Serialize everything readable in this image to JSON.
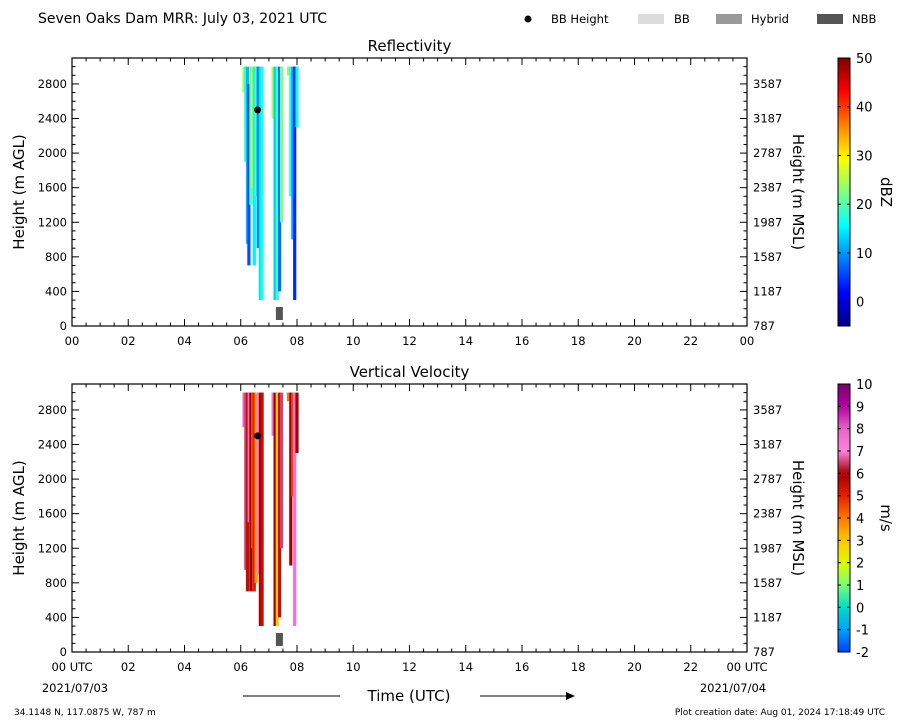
{
  "header": {
    "title": "Seven Oaks Dam MRR:  July 03, 2021 UTC",
    "legend": [
      {
        "label": "BB Height",
        "marker": "dot",
        "color": "#000000"
      },
      {
        "label": "BB",
        "marker": "box",
        "color": "#dcdcdc"
      },
      {
        "label": "Hybrid",
        "marker": "box",
        "color": "#999999"
      },
      {
        "label": "NBB",
        "marker": "box",
        "color": "#555555"
      }
    ]
  },
  "footer": {
    "location": "34.1148 N, 117.0875 W, 787 m",
    "created": "Plot creation date: Aug 01, 2024 17:18:49 UTC",
    "time_label": "Time (UTC)",
    "start_date": "2021/07/03",
    "end_date": "2021/07/04"
  },
  "chart_data": [
    {
      "type": "heatmap",
      "title": "Reflectivity",
      "ylabel": "Height (m AGL)",
      "ylabel_right": "Height (m MSL)",
      "colorbar_label": "dBZ",
      "colorbar_ticks": [
        "0",
        "10",
        "20",
        "30",
        "40",
        "50"
      ],
      "colorbar_range": [
        -5,
        50
      ],
      "colormap": "jet",
      "x_ticks": [
        "00",
        "02",
        "04",
        "06",
        "08",
        "10",
        "12",
        "14",
        "16",
        "18",
        "20",
        "22",
        "00"
      ],
      "xlim_hours": [
        0,
        24
      ],
      "y_ticks": [
        "0",
        "400",
        "800",
        "1200",
        "1600",
        "2000",
        "2400",
        "2800"
      ],
      "y_ticks_right": [
        "787",
        "1187",
        "1587",
        "1987",
        "2387",
        "2787",
        "3187",
        "3587"
      ],
      "ylim": [
        0,
        3100
      ],
      "columns": [
        {
          "t": 6.12,
          "bottom": 2700,
          "top": 3000,
          "value": 24
        },
        {
          "t": 6.18,
          "bottom": 1900,
          "top": 3000,
          "value": 18
        },
        {
          "t": 6.24,
          "bottom": 950,
          "top": 3000,
          "value": 12
        },
        {
          "t": 6.29,
          "bottom": 700,
          "top": 2800,
          "value": 6
        },
        {
          "t": 6.36,
          "bottom": 1400,
          "top": 3000,
          "value": 21
        },
        {
          "t": 6.42,
          "bottom": 1600,
          "top": 3000,
          "value": 27
        },
        {
          "t": 6.48,
          "bottom": 700,
          "top": 3000,
          "value": 15
        },
        {
          "t": 6.55,
          "bottom": 1500,
          "top": 3000,
          "value": 20
        },
        {
          "t": 6.62,
          "bottom": 900,
          "top": 3000,
          "value": 9
        },
        {
          "t": 6.7,
          "bottom": 300,
          "top": 3000,
          "value": 14
        },
        {
          "t": 6.76,
          "bottom": 300,
          "top": 3000,
          "value": 17
        },
        {
          "t": 7.15,
          "bottom": 2400,
          "top": 3000,
          "value": 25
        },
        {
          "t": 7.22,
          "bottom": 300,
          "top": 3000,
          "value": 13
        },
        {
          "t": 7.3,
          "bottom": 300,
          "top": 3000,
          "value": 19
        },
        {
          "t": 7.38,
          "bottom": 400,
          "top": 3000,
          "value": 8
        },
        {
          "t": 7.45,
          "bottom": 1200,
          "top": 3000,
          "value": 22
        },
        {
          "t": 7.7,
          "bottom": 2900,
          "top": 3000,
          "value": 23
        },
        {
          "t": 7.78,
          "bottom": 1500,
          "top": 3000,
          "value": 18
        },
        {
          "t": 7.85,
          "bottom": 1000,
          "top": 3000,
          "value": 11
        },
        {
          "t": 7.92,
          "bottom": 300,
          "top": 3000,
          "value": 4
        },
        {
          "t": 8.0,
          "bottom": 2300,
          "top": 3000,
          "value": 16
        }
      ],
      "bb_height": [
        {
          "t": 6.6,
          "h": 2500
        }
      ],
      "bb_flags": [
        {
          "t_start": 7.25,
          "t_end": 7.5,
          "type": "NBB"
        }
      ]
    },
    {
      "type": "heatmap",
      "title": "Vertical Velocity",
      "ylabel": "Height (m AGL)",
      "ylabel_right": "Height (m MSL)",
      "colorbar_label": "m/s",
      "colorbar_ticks": [
        "-2",
        "-1",
        "0",
        "1",
        "2",
        "3",
        "4",
        "5",
        "6",
        "7",
        "8",
        "9",
        "10"
      ],
      "colorbar_range": [
        -2,
        10
      ],
      "x_ticks": [
        "00 UTC",
        "02",
        "04",
        "06",
        "08",
        "10",
        "12",
        "14",
        "16",
        "18",
        "20",
        "22",
        "00 UTC"
      ],
      "xlim_hours": [
        0,
        24
      ],
      "y_ticks": [
        "0",
        "400",
        "800",
        "1200",
        "1600",
        "2000",
        "2400",
        "2800"
      ],
      "y_ticks_right": [
        "787",
        "1187",
        "1587",
        "1987",
        "2387",
        "2787",
        "3187",
        "3587"
      ],
      "ylim": [
        0,
        3100
      ],
      "columns": [
        {
          "t": 6.12,
          "bottom": 2600,
          "top": 3000,
          "value": 8
        },
        {
          "t": 6.18,
          "bottom": 950,
          "top": 3000,
          "value": 6.5
        },
        {
          "t": 6.24,
          "bottom": 700,
          "top": 3000,
          "value": 5.5
        },
        {
          "t": 6.3,
          "bottom": 1500,
          "top": 3000,
          "value": 7.5
        },
        {
          "t": 6.36,
          "bottom": 700,
          "top": 3000,
          "value": 6
        },
        {
          "t": 6.42,
          "bottom": 1200,
          "top": 3000,
          "value": 4.5
        },
        {
          "t": 6.48,
          "bottom": 700,
          "top": 3000,
          "value": 5
        },
        {
          "t": 6.55,
          "bottom": 800,
          "top": 3000,
          "value": 3.5
        },
        {
          "t": 6.62,
          "bottom": 900,
          "top": 3000,
          "value": 7
        },
        {
          "t": 6.7,
          "bottom": 300,
          "top": 3000,
          "value": 6
        },
        {
          "t": 6.76,
          "bottom": 300,
          "top": 3000,
          "value": 5.5
        },
        {
          "t": 7.15,
          "bottom": 2500,
          "top": 3000,
          "value": 7.5
        },
        {
          "t": 7.22,
          "bottom": 300,
          "top": 3000,
          "value": 6
        },
        {
          "t": 7.3,
          "bottom": 300,
          "top": 3000,
          "value": 3
        },
        {
          "t": 7.38,
          "bottom": 400,
          "top": 3000,
          "value": 5.5
        },
        {
          "t": 7.45,
          "bottom": 1200,
          "top": 3000,
          "value": 6.5
        },
        {
          "t": 7.7,
          "bottom": 2900,
          "top": 3000,
          "value": 4
        },
        {
          "t": 7.78,
          "bottom": 1000,
          "top": 3000,
          "value": 6
        },
        {
          "t": 7.85,
          "bottom": 1800,
          "top": 3000,
          "value": 4.5
        },
        {
          "t": 7.92,
          "bottom": 300,
          "top": 3000,
          "value": 7.5
        },
        {
          "t": 8.0,
          "bottom": 2300,
          "top": 3000,
          "value": 6
        }
      ],
      "bb_height": [
        {
          "t": 6.6,
          "h": 2500
        }
      ],
      "bb_flags": [
        {
          "t_start": 7.25,
          "t_end": 7.5,
          "type": "NBB"
        }
      ]
    }
  ]
}
